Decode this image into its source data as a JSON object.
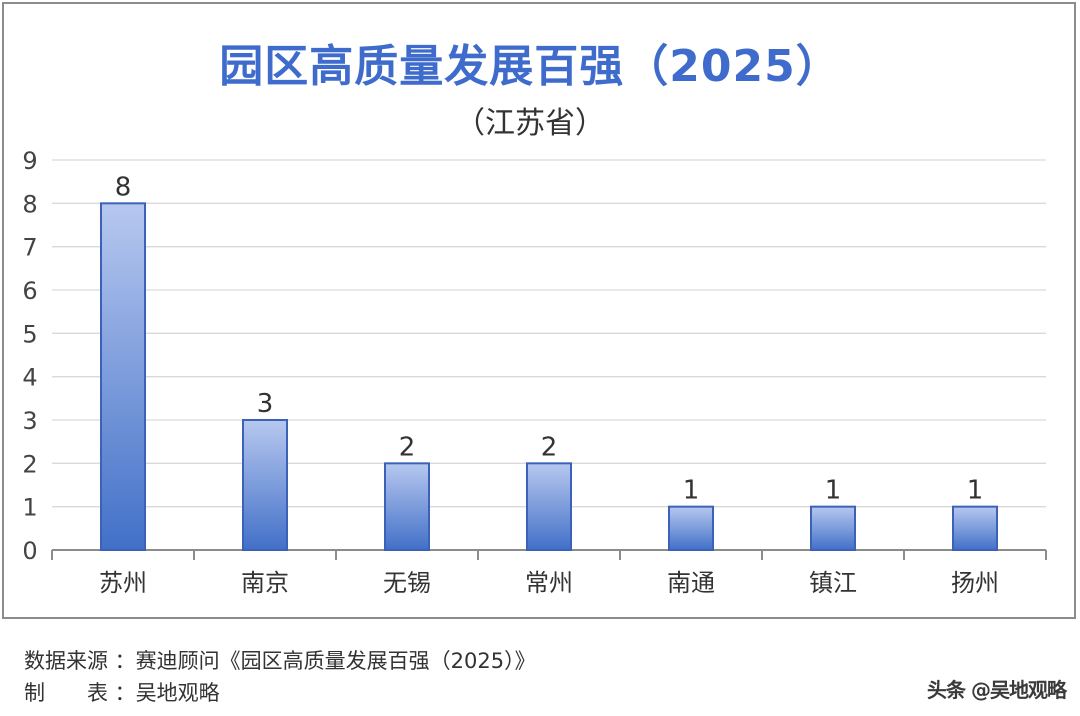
{
  "chart_data": {
    "type": "bar",
    "title": "园区高质量发展百强（2025）",
    "subtitle": "（江苏省）",
    "categories": [
      "苏州",
      "南京",
      "无锡",
      "常州",
      "南通",
      "镇江",
      "扬州"
    ],
    "values": [
      8,
      3,
      2,
      2,
      1,
      1,
      1
    ],
    "ylim": [
      0,
      9
    ],
    "yticks": [
      "0",
      "1",
      "2",
      "3",
      "4",
      "5",
      "6",
      "7",
      "8",
      "9"
    ],
    "grid": true,
    "data_labels": true,
    "bar_color_top": "#b7c8ef",
    "bar_color_bottom": "#4270c8",
    "bar_border": "#3b62b8"
  },
  "footer": {
    "source": "数据来源 ：赛迪顾问《园区高质量发展百强（2025）》",
    "maker": "制　　表 ：吴地观略",
    "watermark": "头条 @吴地观略"
  }
}
